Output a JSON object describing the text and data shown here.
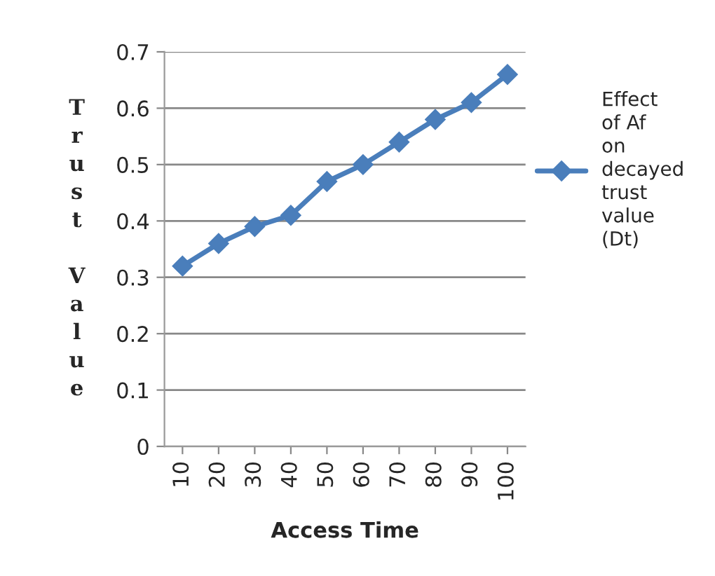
{
  "chart_data": {
    "type": "line",
    "xlabel": "Access Time",
    "ylabel": "Trust Value",
    "categories": [
      "10",
      "20",
      "30",
      "40",
      "50",
      "60",
      "70",
      "80",
      "90",
      "100"
    ],
    "series": [
      {
        "name": "Effect of Af on decayed trust value (Dt)",
        "color": "#4a7ebb",
        "values": [
          0.32,
          0.36,
          0.39,
          0.41,
          0.47,
          0.5,
          0.54,
          0.58,
          0.61,
          0.66
        ]
      }
    ],
    "ylim": [
      0,
      0.7
    ],
    "yticks": [
      {
        "value": 0,
        "label": "0"
      },
      0.1,
      0.2,
      0.3,
      0.4,
      0.5,
      0.6,
      0.7
    ],
    "grid": "y",
    "legend": "right",
    "marker": "diamond",
    "line_style": "solid"
  }
}
